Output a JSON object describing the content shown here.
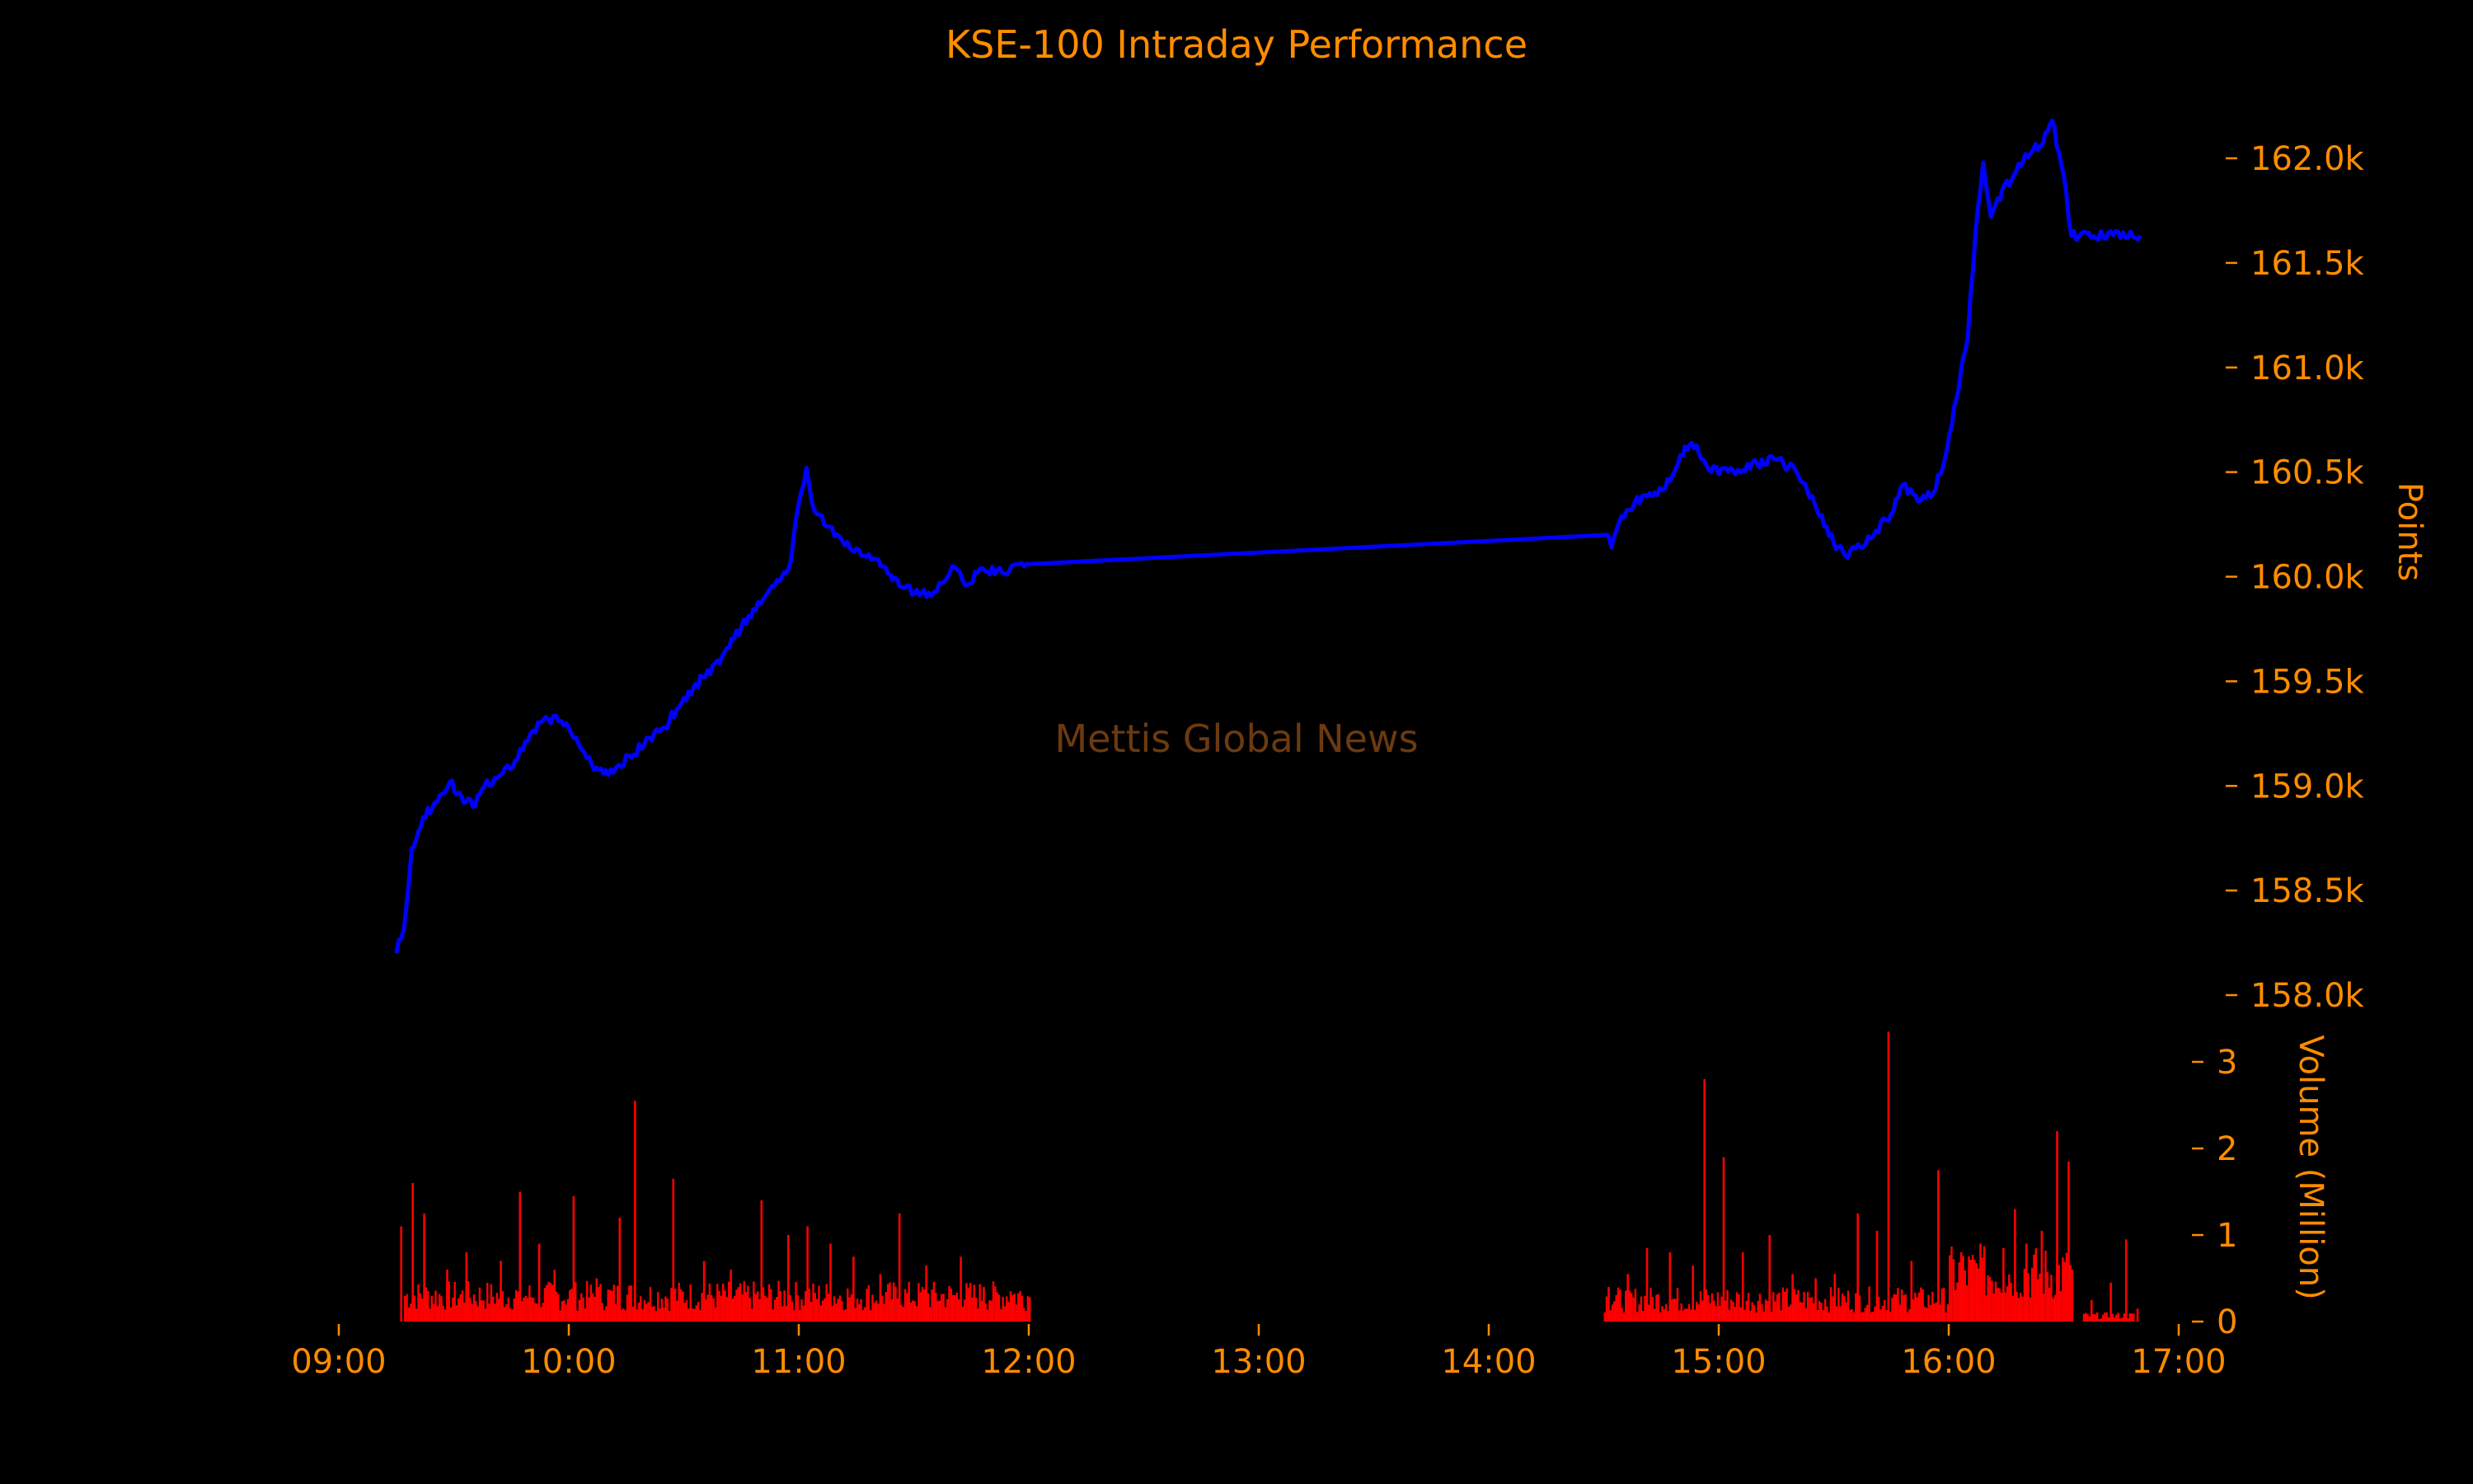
{
  "chart_data": {
    "type": "line",
    "title": "KSE-100 Intraday Performance",
    "watermark": "Mettis Global News",
    "background_color": "#000000",
    "text_color": "#ff8c00",
    "price_series": {
      "color": "#0000ff",
      "ylabel": "Points",
      "ylim": [
        157850,
        162300
      ],
      "yticks": [
        158000,
        158500,
        159000,
        159500,
        160000,
        160500,
        161000,
        161500,
        162000
      ],
      "ytick_labels": [
        "158.0k",
        "158.5k",
        "159.0k",
        "159.5k",
        "160.0k",
        "160.5k",
        "161.0k",
        "161.5k",
        "162.0k"
      ],
      "points": [
        [
          "09:15",
          158200
        ],
        [
          "09:17",
          158320
        ],
        [
          "09:19",
          158700
        ],
        [
          "09:22",
          158850
        ],
        [
          "09:25",
          158920
        ],
        [
          "09:29",
          159020
        ],
        [
          "09:32",
          158950
        ],
        [
          "09:35",
          158900
        ],
        [
          "09:38",
          159000
        ],
        [
          "09:42",
          159050
        ],
        [
          "09:46",
          159120
        ],
        [
          "09:50",
          159250
        ],
        [
          "09:54",
          159330
        ],
        [
          "09:58",
          159310
        ],
        [
          "10:02",
          159230
        ],
        [
          "10:06",
          159100
        ],
        [
          "10:09",
          159060
        ],
        [
          "10:13",
          159100
        ],
        [
          "10:17",
          159150
        ],
        [
          "10:21",
          159230
        ],
        [
          "10:25",
          159280
        ],
        [
          "10:30",
          159420
        ],
        [
          "10:35",
          159520
        ],
        [
          "10:40",
          159620
        ],
        [
          "10:45",
          159760
        ],
        [
          "10:50",
          159870
        ],
        [
          "10:55",
          159980
        ],
        [
          "10:58",
          160080
        ],
        [
          "11:00",
          160350
        ],
        [
          "11:02",
          160520
        ],
        [
          "11:04",
          160320
        ],
        [
          "11:08",
          160240
        ],
        [
          "11:12",
          160150
        ],
        [
          "11:17",
          160100
        ],
        [
          "11:22",
          160050
        ],
        [
          "11:27",
          159950
        ],
        [
          "11:32",
          159920
        ],
        [
          "11:36",
          159930
        ],
        [
          "11:40",
          160050
        ],
        [
          "11:44",
          159960
        ],
        [
          "11:48",
          160040
        ],
        [
          "11:53",
          160020
        ],
        [
          "11:57",
          160060
        ],
        [
          "12:00",
          160060
        ],
        [
          "14:31",
          160200
        ],
        [
          "14:32",
          160140
        ],
        [
          "14:34",
          160260
        ],
        [
          "14:38",
          160350
        ],
        [
          "14:42",
          160400
        ],
        [
          "14:46",
          160420
        ],
        [
          "14:50",
          160580
        ],
        [
          "14:53",
          160640
        ],
        [
          "14:56",
          160560
        ],
        [
          "15:00",
          160490
        ],
        [
          "15:05",
          160510
        ],
        [
          "15:10",
          160540
        ],
        [
          "15:15",
          160560
        ],
        [
          "15:20",
          160510
        ],
        [
          "15:25",
          160350
        ],
        [
          "15:30",
          160160
        ],
        [
          "15:33",
          160100
        ],
        [
          "15:37",
          160140
        ],
        [
          "15:41",
          160220
        ],
        [
          "15:45",
          160300
        ],
        [
          "15:48",
          160440
        ],
        [
          "15:52",
          160360
        ],
        [
          "15:56",
          160400
        ],
        [
          "15:59",
          160560
        ],
        [
          "16:02",
          160850
        ],
        [
          "16:05",
          161150
        ],
        [
          "16:07",
          161650
        ],
        [
          "16:09",
          161980
        ],
        [
          "16:11",
          161720
        ],
        [
          "16:14",
          161850
        ],
        [
          "16:17",
          161920
        ],
        [
          "16:20",
          162020
        ],
        [
          "16:24",
          162060
        ],
        [
          "16:27",
          162180
        ],
        [
          "16:30",
          161920
        ],
        [
          "16:32",
          161630
        ],
        [
          "16:50",
          161630
        ]
      ]
    },
    "volume_series": {
      "color": "#ff0000",
      "ylabel": "Volume (Million)",
      "ylim": [
        0,
        3.4
      ],
      "yticks": [
        0,
        1,
        2,
        3
      ],
      "ytick_labels": [
        "0",
        "1",
        "2",
        "3"
      ],
      "spikes": [
        [
          "09:16",
          1.1
        ],
        [
          "09:19",
          1.6
        ],
        [
          "09:22",
          1.25
        ],
        [
          "09:28",
          0.6
        ],
        [
          "09:33",
          0.8
        ],
        [
          "09:42",
          0.7
        ],
        [
          "09:47",
          1.5
        ],
        [
          "09:52",
          0.9
        ],
        [
          "09:56",
          0.6
        ],
        [
          "10:01",
          1.45
        ],
        [
          "10:07",
          0.5
        ],
        [
          "10:13",
          1.2
        ],
        [
          "10:17",
          2.55
        ],
        [
          "10:27",
          1.65
        ],
        [
          "10:35",
          0.7
        ],
        [
          "10:42",
          0.6
        ],
        [
          "10:50",
          1.4
        ],
        [
          "10:57",
          1.0
        ],
        [
          "11:02",
          1.1
        ],
        [
          "11:08",
          0.9
        ],
        [
          "11:14",
          0.75
        ],
        [
          "11:21",
          0.55
        ],
        [
          "11:26",
          1.25
        ],
        [
          "11:33",
          0.65
        ],
        [
          "11:42",
          0.75
        ],
        [
          "11:48",
          0.4
        ],
        [
          "11:55",
          0.35
        ],
        [
          "14:31",
          0.4
        ],
        [
          "14:36",
          0.55
        ],
        [
          "14:41",
          0.85
        ],
        [
          "14:47",
          0.8
        ],
        [
          "14:53",
          0.65
        ],
        [
          "14:56",
          2.8
        ],
        [
          "15:01",
          1.9
        ],
        [
          "15:06",
          0.8
        ],
        [
          "15:13",
          1.0
        ],
        [
          "15:19",
          0.55
        ],
        [
          "15:25",
          0.5
        ],
        [
          "15:30",
          0.55
        ],
        [
          "15:36",
          1.25
        ],
        [
          "15:41",
          1.05
        ],
        [
          "15:44",
          3.35
        ],
        [
          "15:50",
          0.7
        ],
        [
          "15:57",
          1.75
        ],
        [
          "16:03",
          0.8
        ],
        [
          "16:08",
          0.9
        ],
        [
          "16:14",
          0.85
        ],
        [
          "16:17",
          1.3
        ],
        [
          "16:20",
          0.9
        ],
        [
          "16:24",
          1.05
        ],
        [
          "16:28",
          2.2
        ],
        [
          "16:31",
          1.85
        ],
        [
          "16:37",
          0.25
        ],
        [
          "16:42",
          0.45
        ],
        [
          "16:46",
          0.95
        ],
        [
          "16:49",
          0.15
        ]
      ],
      "baseline_sessions": [
        [
          "09:17",
          "12:00",
          0.35
        ],
        [
          "14:30",
          "16:00",
          0.3
        ],
        [
          "16:00",
          "16:32",
          0.65
        ],
        [
          "16:35",
          "16:48",
          0.08
        ]
      ]
    },
    "x_axis": {
      "range": [
        "09:00",
        "17:00"
      ],
      "ticks": [
        "09:00",
        "10:00",
        "11:00",
        "12:00",
        "13:00",
        "14:00",
        "15:00",
        "16:00",
        "17:00"
      ]
    }
  }
}
